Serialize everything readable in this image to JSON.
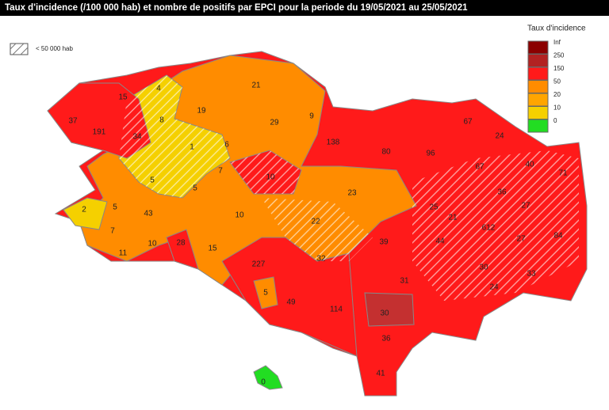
{
  "title": "Taux d'incidence (/100 000 hab) et nombre de positifs par EPCI pour la periode du 19/05/2021 au 25/05/2021",
  "hatch_legend": "< 50 000 hab",
  "legend": {
    "title": "Taux d'incidence",
    "items": [
      {
        "label": "Inf",
        "color": "#8b0000"
      },
      {
        "label": "250",
        "color": "#b22222"
      },
      {
        "label": "150",
        "color": "#ff1a1a"
      },
      {
        "label": "50",
        "color": "#ff8c00"
      },
      {
        "label": "20",
        "color": "#ffa500"
      },
      {
        "label": "10",
        "color": "#f5d000"
      },
      {
        "label": "0",
        "color": "#22dd22"
      }
    ]
  },
  "region_labels": [
    "15",
    "37",
    "191",
    "34",
    "4",
    "8",
    "19",
    "21",
    "29",
    "9",
    "1",
    "138",
    "80",
    "96",
    "67",
    "24",
    "6",
    "7",
    "5",
    "5",
    "10",
    "23",
    "67",
    "40",
    "71",
    "2",
    "5",
    "43",
    "10",
    "22",
    "25",
    "21",
    "36",
    "27",
    "7",
    "11",
    "10",
    "28",
    "15",
    "39",
    "612",
    "27",
    "84",
    "227",
    "32",
    "44",
    "30",
    "31",
    "24",
    "33",
    "5",
    "49",
    "114",
    "30",
    "36",
    "41",
    "0"
  ]
}
